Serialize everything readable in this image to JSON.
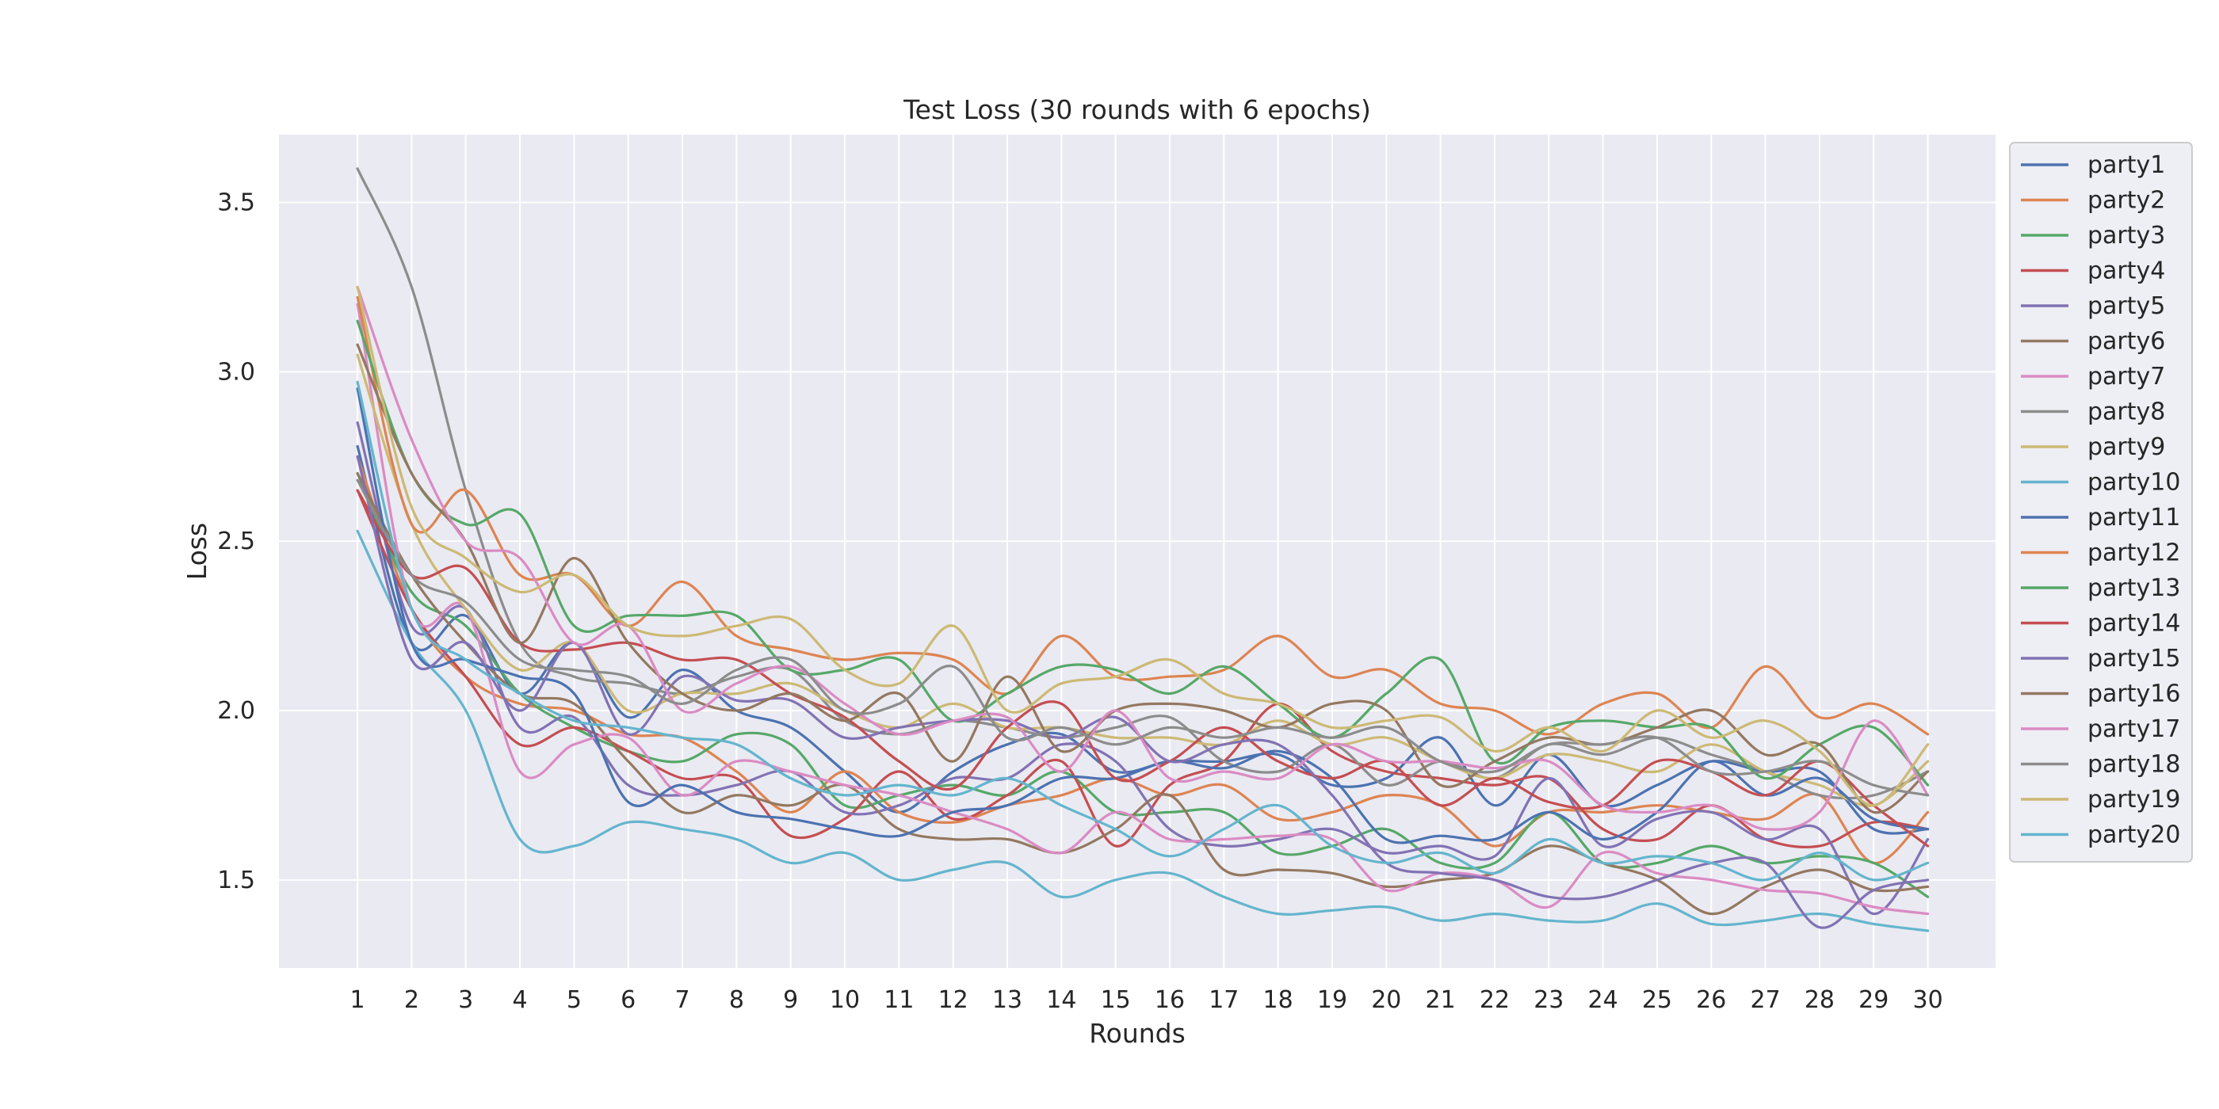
{
  "chart_data": {
    "type": "line",
    "title": "Test Loss (30 rounds with 6 epochs)",
    "xlabel": "Rounds",
    "ylabel": "Loss",
    "x": [
      1,
      2,
      3,
      4,
      5,
      6,
      7,
      8,
      9,
      10,
      11,
      12,
      13,
      14,
      15,
      16,
      17,
      18,
      19,
      20,
      21,
      22,
      23,
      24,
      25,
      26,
      27,
      28,
      29,
      30
    ],
    "xticks": [
      "1",
      "2",
      "3",
      "4",
      "5",
      "6",
      "7",
      "8",
      "9",
      "10",
      "11",
      "12",
      "13",
      "14",
      "15",
      "16",
      "17",
      "18",
      "19",
      "20",
      "21",
      "22",
      "23",
      "24",
      "25",
      "26",
      "27",
      "28",
      "29",
      "30"
    ],
    "yticks": [
      1.5,
      2.0,
      2.5,
      3.0,
      3.5
    ],
    "ytick_labels": [
      "1.5",
      "2.0",
      "2.5",
      "3.0",
      "3.5"
    ],
    "xlim": [
      -0.45,
      31.25
    ],
    "ylim": [
      1.24,
      3.7
    ],
    "grid": true,
    "legend_position": "outside-right-top",
    "background_color": "#eaeaf2",
    "grid_color": "#ffffff",
    "series": [
      {
        "name": "party1",
        "color": "#4c72b0",
        "values": [
          2.78,
          2.2,
          2.28,
          2.05,
          2.2,
          1.98,
          2.12,
          2.0,
          1.95,
          1.82,
          1.7,
          1.82,
          1.9,
          1.93,
          1.82,
          1.85,
          1.85,
          1.87,
          1.78,
          1.8,
          1.92,
          1.72,
          1.87,
          1.72,
          1.78,
          1.85,
          1.82,
          1.82,
          1.65,
          1.65
        ]
      },
      {
        "name": "party2",
        "color": "#dd8452",
        "values": [
          2.75,
          2.3,
          2.1,
          2.02,
          2.0,
          1.93,
          1.92,
          1.82,
          1.7,
          1.82,
          1.7,
          1.67,
          1.72,
          1.75,
          1.8,
          1.75,
          1.78,
          1.68,
          1.7,
          1.75,
          1.72,
          1.6,
          1.7,
          1.7,
          1.72,
          1.7,
          1.68,
          1.75,
          1.55,
          1.7
        ]
      },
      {
        "name": "party3",
        "color": "#55a868",
        "values": [
          2.7,
          2.35,
          2.25,
          2.05,
          1.95,
          1.88,
          1.85,
          1.93,
          1.9,
          1.72,
          1.75,
          1.78,
          1.75,
          1.82,
          1.7,
          1.7,
          1.7,
          1.58,
          1.6,
          1.65,
          1.55,
          1.55,
          1.7,
          1.55,
          1.55,
          1.6,
          1.55,
          1.57,
          1.55,
          1.45
        ]
      },
      {
        "name": "party4",
        "color": "#c44e52",
        "values": [
          2.65,
          2.3,
          2.1,
          1.9,
          1.95,
          1.88,
          1.8,
          1.8,
          1.63,
          1.68,
          1.82,
          1.68,
          1.75,
          1.85,
          1.6,
          1.78,
          1.85,
          2.02,
          1.88,
          1.82,
          1.8,
          1.78,
          1.8,
          1.65,
          1.62,
          1.72,
          1.62,
          1.6,
          1.67,
          1.65
        ]
      },
      {
        "name": "party5",
        "color": "#8172b3",
        "values": [
          2.85,
          2.25,
          2.3,
          1.95,
          1.98,
          1.78,
          1.75,
          1.78,
          1.82,
          1.7,
          1.72,
          1.8,
          1.8,
          1.9,
          1.85,
          1.65,
          1.6,
          1.62,
          1.65,
          1.58,
          1.6,
          1.57,
          1.8,
          1.6,
          1.68,
          1.7,
          1.62,
          1.65,
          1.4,
          1.62
        ]
      },
      {
        "name": "party6",
        "color": "#937860",
        "values": [
          2.7,
          2.4,
          2.2,
          2.05,
          2.02,
          1.85,
          1.7,
          1.75,
          1.72,
          1.78,
          1.65,
          1.62,
          1.62,
          1.58,
          1.65,
          1.75,
          1.53,
          1.53,
          1.52,
          1.48,
          1.5,
          1.52,
          1.6,
          1.55,
          1.5,
          1.4,
          1.48,
          1.53,
          1.47,
          1.48
        ]
      },
      {
        "name": "party7",
        "color": "#da8bc3",
        "values": [
          3.2,
          2.3,
          2.3,
          1.82,
          1.9,
          1.92,
          1.75,
          1.85,
          1.82,
          1.78,
          1.75,
          1.7,
          1.65,
          1.58,
          1.7,
          1.62,
          1.62,
          1.63,
          1.62,
          1.47,
          1.52,
          1.5,
          1.42,
          1.58,
          1.52,
          1.5,
          1.47,
          1.46,
          1.42,
          1.4
        ]
      },
      {
        "name": "party8",
        "color": "#8c8c8c",
        "values": [
          3.6,
          3.25,
          2.65,
          2.2,
          2.1,
          2.08,
          2.05,
          2.1,
          2.12,
          1.97,
          1.93,
          1.97,
          1.95,
          1.92,
          1.95,
          1.98,
          1.85,
          1.82,
          1.9,
          1.78,
          1.85,
          1.8,
          1.9,
          1.87,
          1.92,
          1.87,
          1.82,
          1.75,
          1.75,
          1.82
        ]
      },
      {
        "name": "party9",
        "color": "#ccb974",
        "values": [
          3.05,
          2.55,
          2.3,
          2.12,
          2.2,
          2.0,
          2.05,
          2.05,
          2.08,
          2.0,
          1.95,
          2.02,
          1.95,
          1.95,
          1.92,
          1.92,
          1.9,
          1.97,
          1.9,
          1.92,
          1.85,
          1.8,
          1.87,
          1.85,
          1.82,
          1.9,
          1.82,
          1.78,
          1.72,
          1.85
        ]
      },
      {
        "name": "party10",
        "color": "#64b5cd",
        "values": [
          2.53,
          2.2,
          2.0,
          1.62,
          1.6,
          1.67,
          1.65,
          1.62,
          1.55,
          1.58,
          1.5,
          1.53,
          1.55,
          1.45,
          1.5,
          1.52,
          1.45,
          1.4,
          1.41,
          1.42,
          1.38,
          1.4,
          1.38,
          1.38,
          1.43,
          1.37,
          1.38,
          1.4,
          1.37,
          1.35
        ]
      },
      {
        "name": "party11",
        "color": "#4c72b0",
        "values": [
          2.95,
          2.2,
          2.15,
          2.1,
          2.05,
          1.73,
          1.78,
          1.7,
          1.68,
          1.65,
          1.63,
          1.7,
          1.72,
          1.8,
          1.8,
          1.85,
          1.83,
          1.88,
          1.8,
          1.62,
          1.63,
          1.62,
          1.7,
          1.62,
          1.7,
          1.85,
          1.75,
          1.8,
          1.68,
          1.65
        ]
      },
      {
        "name": "party12",
        "color": "#dd8452",
        "values": [
          3.22,
          2.55,
          2.65,
          2.4,
          2.4,
          2.25,
          2.38,
          2.22,
          2.18,
          2.15,
          2.17,
          2.15,
          2.05,
          2.22,
          2.1,
          2.1,
          2.12,
          2.22,
          2.1,
          2.12,
          2.02,
          2.0,
          1.93,
          2.02,
          2.05,
          1.95,
          2.13,
          1.98,
          2.02,
          1.93
        ]
      },
      {
        "name": "party13",
        "color": "#55a868",
        "values": [
          3.15,
          2.7,
          2.55,
          2.58,
          2.25,
          2.28,
          2.28,
          2.28,
          2.12,
          2.12,
          2.15,
          1.97,
          2.05,
          2.13,
          2.12,
          2.05,
          2.13,
          2.02,
          1.92,
          2.05,
          2.15,
          1.85,
          1.95,
          1.97,
          1.95,
          1.95,
          1.8,
          1.9,
          1.95,
          1.78
        ]
      },
      {
        "name": "party14",
        "color": "#c44e52",
        "values": [
          2.65,
          2.4,
          2.42,
          2.2,
          2.18,
          2.2,
          2.15,
          2.15,
          2.05,
          1.98,
          1.85,
          1.77,
          1.95,
          2.02,
          1.8,
          1.85,
          1.95,
          1.85,
          1.8,
          1.85,
          1.72,
          1.8,
          1.73,
          1.72,
          1.85,
          1.82,
          1.75,
          1.85,
          1.72,
          1.6
        ]
      },
      {
        "name": "party15",
        "color": "#8172b3",
        "values": [
          2.75,
          2.15,
          2.2,
          2.0,
          2.2,
          1.93,
          2.1,
          2.03,
          2.03,
          1.92,
          1.95,
          1.97,
          1.97,
          1.92,
          1.98,
          1.85,
          1.9,
          1.9,
          1.75,
          1.55,
          1.52,
          1.5,
          1.45,
          1.45,
          1.5,
          1.55,
          1.55,
          1.36,
          1.47,
          1.5
        ]
      },
      {
        "name": "party16",
        "color": "#937860",
        "values": [
          3.08,
          2.7,
          2.5,
          2.2,
          2.45,
          2.2,
          2.05,
          2.0,
          2.05,
          1.97,
          2.05,
          1.85,
          2.1,
          1.88,
          2.0,
          2.02,
          2.0,
          1.95,
          2.02,
          2.0,
          1.78,
          1.85,
          1.92,
          1.9,
          1.95,
          2.0,
          1.87,
          1.9,
          1.7,
          1.82
        ]
      },
      {
        "name": "party17",
        "color": "#da8bc3",
        "values": [
          3.25,
          2.8,
          2.5,
          2.45,
          2.2,
          2.25,
          2.0,
          2.08,
          2.13,
          2.02,
          1.93,
          1.97,
          1.98,
          1.82,
          2.0,
          1.8,
          1.82,
          1.8,
          1.9,
          1.85,
          1.85,
          1.83,
          1.85,
          1.72,
          1.7,
          1.72,
          1.65,
          1.7,
          1.97,
          1.75
        ]
      },
      {
        "name": "party18",
        "color": "#8c8c8c",
        "values": [
          2.68,
          2.4,
          2.32,
          2.15,
          2.12,
          2.1,
          2.02,
          2.12,
          2.15,
          2.0,
          2.02,
          2.13,
          1.92,
          1.95,
          1.9,
          1.95,
          1.92,
          1.95,
          1.92,
          1.95,
          1.85,
          1.82,
          1.9,
          1.9,
          1.92,
          1.82,
          1.82,
          1.85,
          1.78,
          1.75
        ]
      },
      {
        "name": "party19",
        "color": "#ccb974",
        "values": [
          3.25,
          2.6,
          2.45,
          2.35,
          2.4,
          2.25,
          2.22,
          2.25,
          2.27,
          2.12,
          2.08,
          2.25,
          2.0,
          2.08,
          2.1,
          2.15,
          2.05,
          2.02,
          1.95,
          1.97,
          1.98,
          1.88,
          1.95,
          1.88,
          2.0,
          1.92,
          1.97,
          1.88,
          1.72,
          1.9
        ]
      },
      {
        "name": "party20",
        "color": "#64b5cd",
        "values": [
          2.97,
          2.3,
          2.15,
          2.05,
          1.97,
          1.95,
          1.92,
          1.9,
          1.8,
          1.75,
          1.78,
          1.75,
          1.8,
          1.72,
          1.65,
          1.57,
          1.65,
          1.72,
          1.6,
          1.55,
          1.58,
          1.52,
          1.62,
          1.55,
          1.57,
          1.55,
          1.5,
          1.58,
          1.5,
          1.55
        ]
      }
    ]
  }
}
